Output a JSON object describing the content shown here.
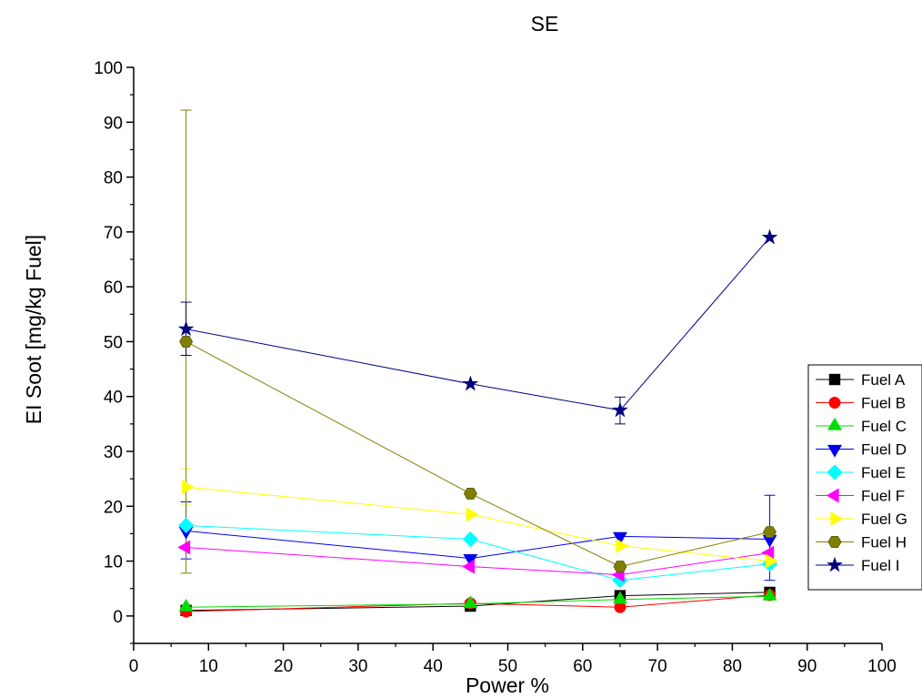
{
  "chart_data": {
    "type": "line",
    "title": "SE",
    "xlabel": "Power %",
    "ylabel": "EI Soot [mg/kg Fuel]",
    "xlim": [
      0,
      100
    ],
    "ylim": [
      -5,
      100
    ],
    "x_ticks": [
      "0",
      "10",
      "20",
      "30",
      "40",
      "50",
      "60",
      "70",
      "80",
      "90",
      "100"
    ],
    "y_ticks": [
      "0",
      "10",
      "20",
      "30",
      "40",
      "50",
      "60",
      "70",
      "80",
      "90",
      "100"
    ],
    "grid": false,
    "legend_position": "right",
    "x": [
      7,
      45,
      65,
      85
    ],
    "series": [
      {
        "name": "Fuel A",
        "color": "#000000",
        "marker": "square",
        "values": [
          1.0,
          1.8,
          3.7,
          4.3
        ]
      },
      {
        "name": "Fuel B",
        "color": "#ff0000",
        "marker": "circle",
        "values": [
          0.8,
          2.3,
          1.6,
          3.8
        ]
      },
      {
        "name": "Fuel C",
        "color": "#00dd00",
        "marker": "triangle-up",
        "values": [
          1.6,
          2.2,
          3.0,
          3.6
        ]
      },
      {
        "name": "Fuel D",
        "color": "#0000ee",
        "marker": "triangle-down",
        "values": [
          15.5,
          10.5,
          14.5,
          14.0
        ],
        "errors": [
          [
            20.8,
            10.4
          ],
          null,
          null,
          [
            22.0,
            6.5
          ]
        ]
      },
      {
        "name": "Fuel E",
        "color": "#00ffff",
        "marker": "diamond",
        "values": [
          16.5,
          14.0,
          6.5,
          9.5
        ]
      },
      {
        "name": "Fuel F",
        "color": "#ff00ff",
        "marker": "triangle-left",
        "values": [
          12.5,
          9.0,
          7.5,
          11.5
        ]
      },
      {
        "name": "Fuel G",
        "color": "#ffff00",
        "marker": "triangle-right",
        "values": [
          23.5,
          18.5,
          12.8,
          10.0
        ],
        "errors": [
          [
            26.8,
            20.2
          ],
          null,
          null,
          null
        ]
      },
      {
        "name": "Fuel H",
        "color": "#808000",
        "marker": "hexagon",
        "values": [
          50.0,
          22.3,
          9.0,
          15.3
        ],
        "errors": [
          [
            92.2,
            7.8
          ],
          null,
          null,
          null
        ]
      },
      {
        "name": "Fuel I",
        "color": "#000080",
        "marker": "star",
        "values": [
          52.3,
          42.3,
          37.5,
          69.0
        ],
        "errors": [
          [
            57.2,
            47.5
          ],
          null,
          [
            39.9,
            35.0
          ],
          null
        ]
      }
    ]
  }
}
